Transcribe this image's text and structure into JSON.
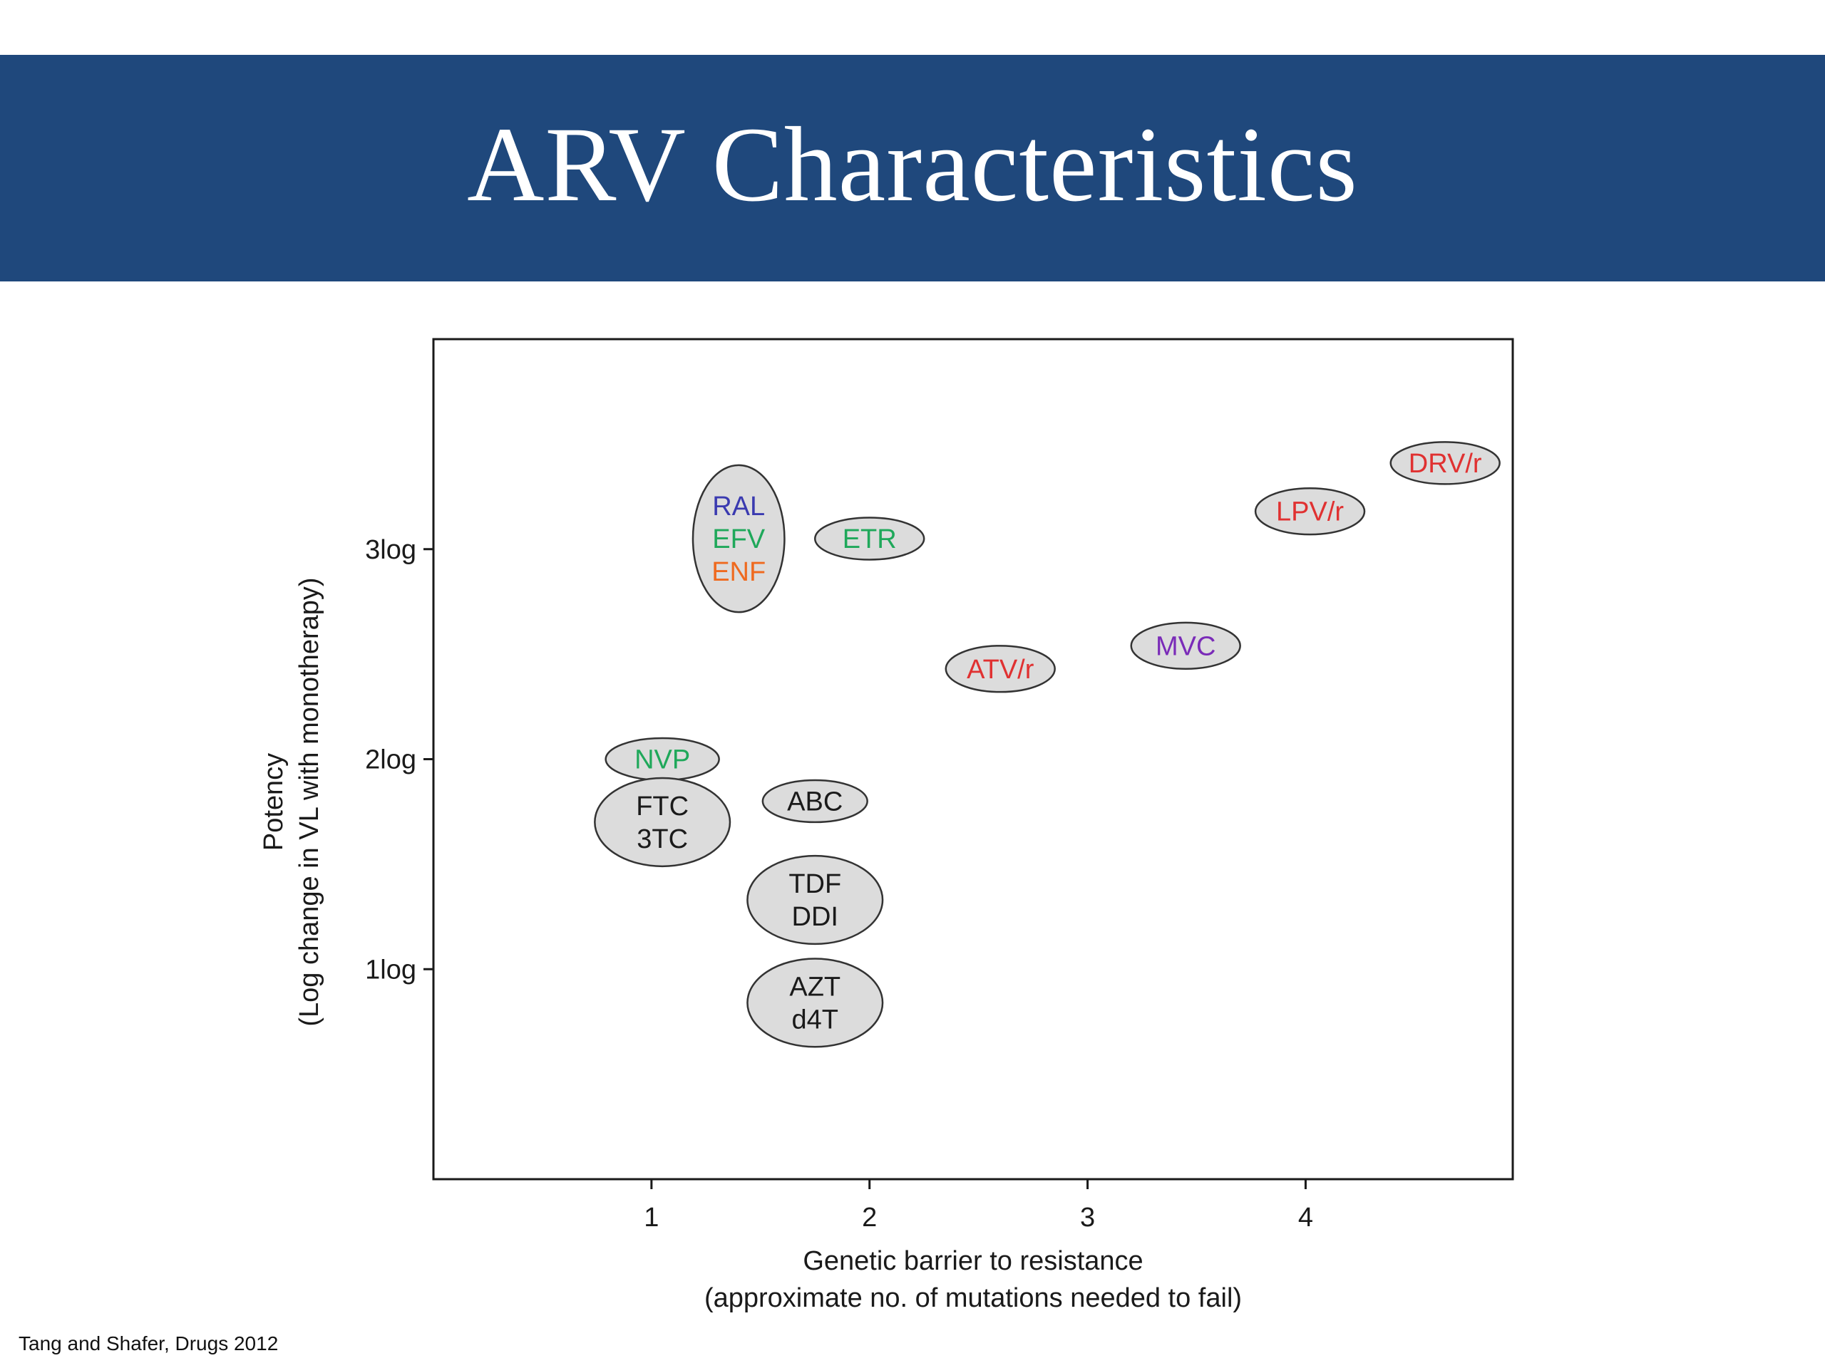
{
  "slide": {
    "title": "ARV Characteristics",
    "citation": "Tang and Shafer, Drugs 2012"
  },
  "colors": {
    "title_band": "#1f487c",
    "bubble_fill": "#dcdcdc",
    "bubble_stroke": "#333333",
    "red": "#e03131",
    "green": "#1fa85a",
    "blue": "#3a3ab0",
    "orange": "#ef6a1f",
    "purple": "#7a2bb8",
    "black": "#1a1a1a"
  },
  "chart_data": {
    "type": "scatter",
    "xlabel": [
      "Genetic barrier to resistance",
      "(approximate no. of mutations needed to fail)"
    ],
    "ylabel": [
      "Potency",
      "(Log change in VL with monotherapy)"
    ],
    "xlim": [
      0,
      4.95
    ],
    "ylim": [
      0,
      4.0
    ],
    "x_ticks": [
      {
        "value": 1,
        "label": "1"
      },
      {
        "value": 2,
        "label": "2"
      },
      {
        "value": 3,
        "label": "3"
      },
      {
        "value": 4,
        "label": "4"
      }
    ],
    "y_ticks": [
      {
        "value": 1,
        "label": "1log"
      },
      {
        "value": 2,
        "label": "2log"
      },
      {
        "value": 3,
        "label": "3log"
      }
    ],
    "grid": false,
    "groups": [
      {
        "x": 1.4,
        "y": 3.05,
        "rx": 0.21,
        "ry": 0.35,
        "drugs": [
          {
            "name": "RAL",
            "color": "blue"
          },
          {
            "name": "EFV",
            "color": "green"
          },
          {
            "name": "ENF",
            "color": "orange"
          }
        ]
      },
      {
        "x": 2.0,
        "y": 3.05,
        "rx": 0.25,
        "ry": 0.1,
        "drugs": [
          {
            "name": "ETR",
            "color": "green"
          }
        ]
      },
      {
        "x": 2.6,
        "y": 2.43,
        "rx": 0.25,
        "ry": 0.11,
        "drugs": [
          {
            "name": "ATV/r",
            "color": "red"
          }
        ]
      },
      {
        "x": 3.45,
        "y": 2.54,
        "rx": 0.25,
        "ry": 0.11,
        "drugs": [
          {
            "name": "MVC",
            "color": "purple"
          }
        ]
      },
      {
        "x": 4.02,
        "y": 3.18,
        "rx": 0.25,
        "ry": 0.11,
        "drugs": [
          {
            "name": "LPV/r",
            "color": "red"
          }
        ]
      },
      {
        "x": 4.64,
        "y": 3.41,
        "rx": 0.25,
        "ry": 0.1,
        "drugs": [
          {
            "name": "DRV/r",
            "color": "red"
          }
        ]
      },
      {
        "x": 1.05,
        "y": 2.0,
        "rx": 0.26,
        "ry": 0.1,
        "drugs": [
          {
            "name": "NVP",
            "color": "green"
          }
        ]
      },
      {
        "x": 1.05,
        "y": 1.7,
        "rx": 0.31,
        "ry": 0.21,
        "drugs": [
          {
            "name": "FTC",
            "color": "black"
          },
          {
            "name": "3TC",
            "color": "black"
          }
        ]
      },
      {
        "x": 1.75,
        "y": 1.8,
        "rx": 0.24,
        "ry": 0.1,
        "drugs": [
          {
            "name": "ABC",
            "color": "black"
          }
        ]
      },
      {
        "x": 1.75,
        "y": 1.33,
        "rx": 0.31,
        "ry": 0.21,
        "drugs": [
          {
            "name": "TDF",
            "color": "black"
          },
          {
            "name": "DDI",
            "color": "black"
          }
        ]
      },
      {
        "x": 1.75,
        "y": 0.84,
        "rx": 0.31,
        "ry": 0.21,
        "drugs": [
          {
            "name": "AZT",
            "color": "black"
          },
          {
            "name": "d4T",
            "color": "black"
          }
        ]
      }
    ]
  }
}
